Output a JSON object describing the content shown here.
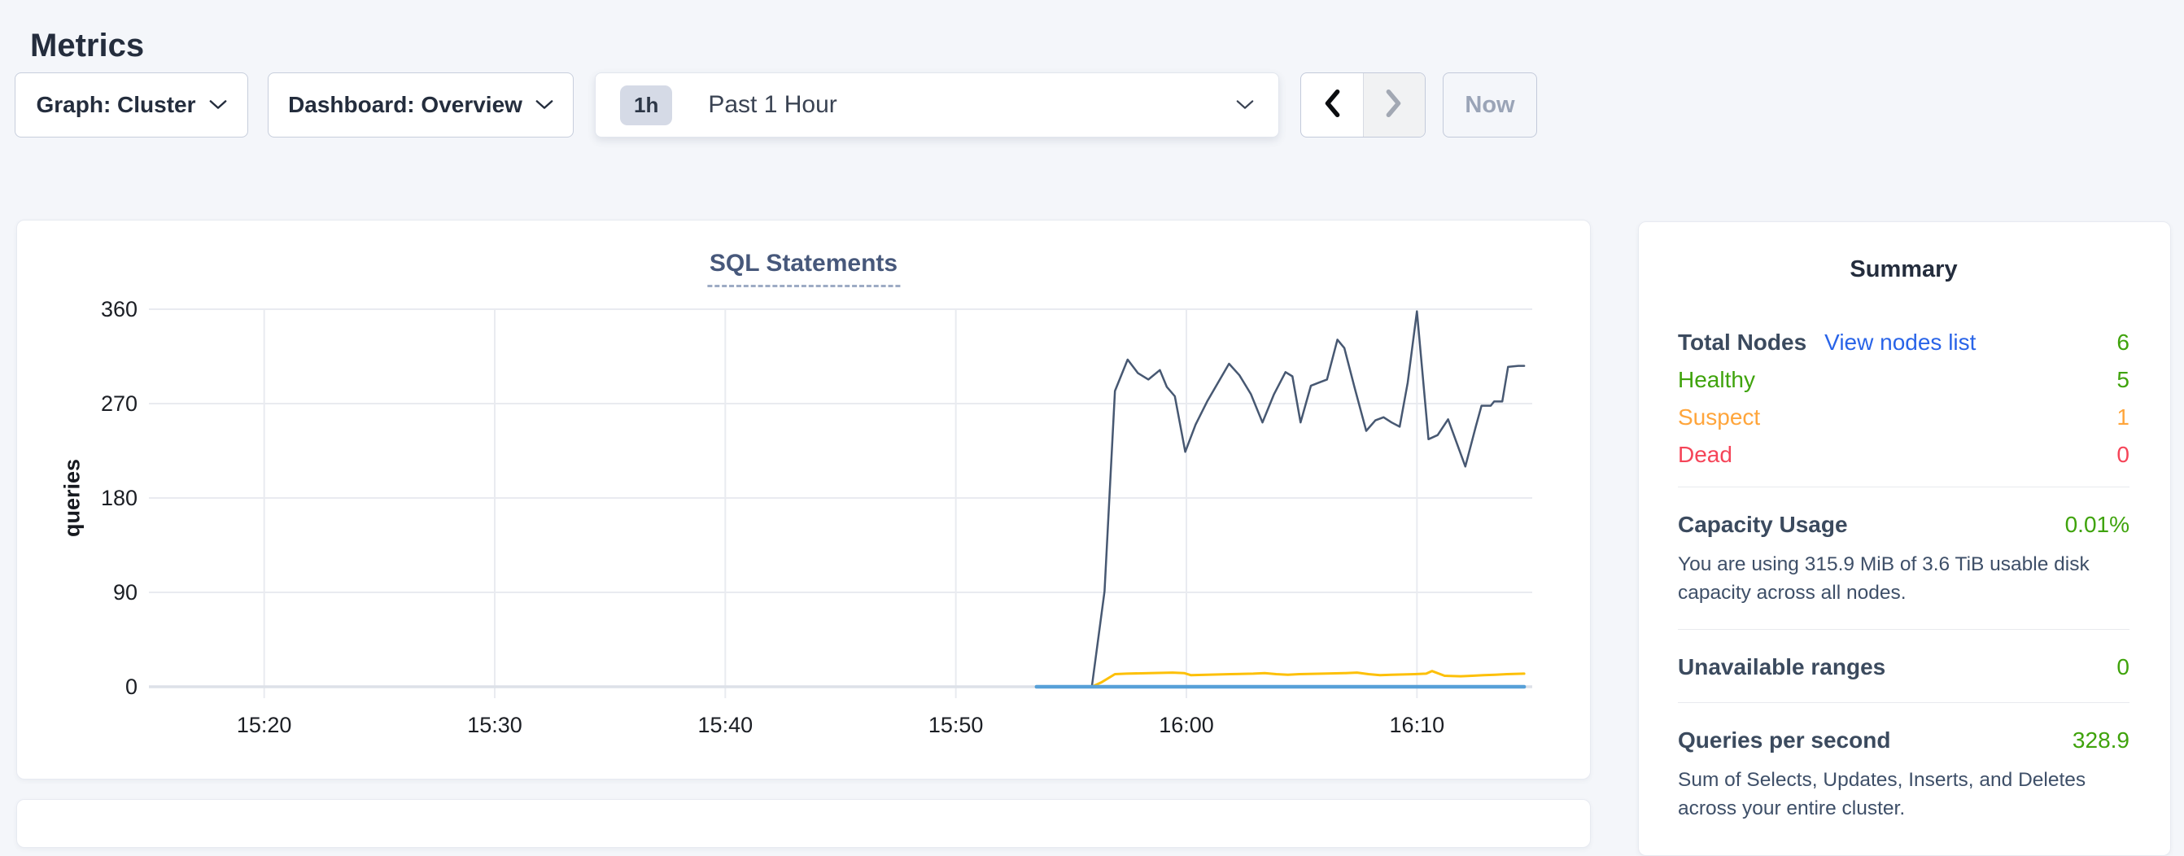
{
  "page": {
    "title": "Metrics",
    "background": "#f4f6fa"
  },
  "toolbar": {
    "graph_dropdown_label": "Graph: Cluster",
    "dashboard_dropdown_label": "Dashboard: Overview",
    "time_range_badge": "1h",
    "time_range_label": "Past 1 Hour",
    "now_button_label": "Now"
  },
  "colors": {
    "green": "#3fa30c",
    "orange": "#ffa53b",
    "red": "#f54458",
    "link_blue": "#2964e8",
    "title_slate": "#47587b",
    "series_dark": "#475872",
    "series_yellow": "#fdc008",
    "series_blue": "#57a0d8",
    "gridline": "#e9ebf0"
  },
  "chart_data": {
    "type": "line",
    "title": "SQL Statements",
    "ylabel": "queries",
    "xlabel": "",
    "grid": true,
    "legend_position": "none",
    "x_units": "minutes after 15:00",
    "xlim": [
      15,
      75
    ],
    "ylim": [
      0,
      360
    ],
    "yticks": [
      0,
      90,
      180,
      270,
      360
    ],
    "xticks": [
      {
        "m": 20,
        "label": "15:20"
      },
      {
        "m": 30,
        "label": "15:30"
      },
      {
        "m": 40,
        "label": "15:40"
      },
      {
        "m": 50,
        "label": "15:50"
      },
      {
        "m": 60,
        "label": "16:00"
      },
      {
        "m": 70,
        "label": "16:10"
      }
    ],
    "series": [
      {
        "name": "statements-dark-line",
        "color": "#475872",
        "stroke_width": 2.5,
        "points": [
          [
            55.9,
            0
          ],
          [
            56.45,
            91
          ],
          [
            56.9,
            282
          ],
          [
            57.45,
            312
          ],
          [
            57.9,
            299
          ],
          [
            58.35,
            293
          ],
          [
            58.85,
            302
          ],
          [
            59.15,
            286
          ],
          [
            59.5,
            277
          ],
          [
            59.95,
            224
          ],
          [
            60.4,
            250
          ],
          [
            60.9,
            272
          ],
          [
            61.4,
            291
          ],
          [
            61.85,
            308
          ],
          [
            62.3,
            297
          ],
          [
            62.8,
            279
          ],
          [
            63.3,
            252
          ],
          [
            63.8,
            279
          ],
          [
            64.3,
            300
          ],
          [
            64.6,
            296
          ],
          [
            64.95,
            252
          ],
          [
            65.4,
            287
          ],
          [
            65.75,
            290
          ],
          [
            66.1,
            293
          ],
          [
            66.55,
            331
          ],
          [
            66.85,
            323
          ],
          [
            67.3,
            285
          ],
          [
            67.8,
            244
          ],
          [
            68.2,
            254
          ],
          [
            68.55,
            257
          ],
          [
            68.9,
            252
          ],
          [
            69.25,
            248
          ],
          [
            69.6,
            290
          ],
          [
            70.0,
            358
          ],
          [
            70.5,
            236
          ],
          [
            70.9,
            240
          ],
          [
            71.35,
            255
          ],
          [
            72.1,
            210
          ],
          [
            72.55,
            248
          ],
          [
            72.8,
            268
          ],
          [
            73.2,
            268
          ],
          [
            73.35,
            272
          ],
          [
            73.7,
            272
          ],
          [
            73.95,
            305
          ],
          [
            74.4,
            306
          ],
          [
            74.65,
            306
          ]
        ]
      },
      {
        "name": "statements-yellow-line",
        "color": "#fdc008",
        "stroke_width": 3,
        "points": [
          [
            55.9,
            0
          ],
          [
            56.3,
            4
          ],
          [
            56.9,
            12
          ],
          [
            57.4,
            12.5
          ],
          [
            58.4,
            13
          ],
          [
            59.4,
            13.5
          ],
          [
            59.9,
            13
          ],
          [
            60.2,
            11
          ],
          [
            60.9,
            11.5
          ],
          [
            61.9,
            12
          ],
          [
            62.9,
            12.5
          ],
          [
            63.4,
            13
          ],
          [
            63.9,
            12
          ],
          [
            64.4,
            11.5
          ],
          [
            64.9,
            12
          ],
          [
            65.9,
            12.5
          ],
          [
            66.9,
            13
          ],
          [
            67.4,
            13.5
          ],
          [
            67.9,
            12
          ],
          [
            68.4,
            11
          ],
          [
            68.9,
            11.5
          ],
          [
            69.9,
            12
          ],
          [
            70.4,
            12.5
          ],
          [
            70.65,
            15
          ],
          [
            71.2,
            10.5
          ],
          [
            71.9,
            10
          ],
          [
            72.4,
            10.5
          ],
          [
            72.9,
            11
          ],
          [
            73.4,
            11.5
          ],
          [
            73.9,
            12
          ],
          [
            74.65,
            12.5
          ]
        ]
      },
      {
        "name": "statements-blue-line",
        "color": "#57a0d8",
        "stroke_width": 4.5,
        "points": [
          [
            53.5,
            0
          ],
          [
            74.65,
            0
          ]
        ]
      }
    ]
  },
  "summary": {
    "title": "Summary",
    "node_rows": [
      {
        "label": "Total Nodes",
        "link": "View nodes list",
        "value": "6"
      },
      {
        "label": "Healthy",
        "value": "5"
      },
      {
        "label": "Suspect",
        "value": "1"
      },
      {
        "label": "Dead",
        "value": "0"
      }
    ],
    "sections": [
      {
        "heading": "Capacity Usage",
        "value": "0.01%",
        "description": "You are using 315.9 MiB of 3.6 TiB usable disk capacity across all nodes."
      },
      {
        "heading": "Unavailable ranges",
        "value": "0"
      },
      {
        "heading": "Queries per second",
        "value": "328.9",
        "description": "Sum of Selects, Updates, Inserts, and Deletes across your entire cluster."
      }
    ]
  }
}
